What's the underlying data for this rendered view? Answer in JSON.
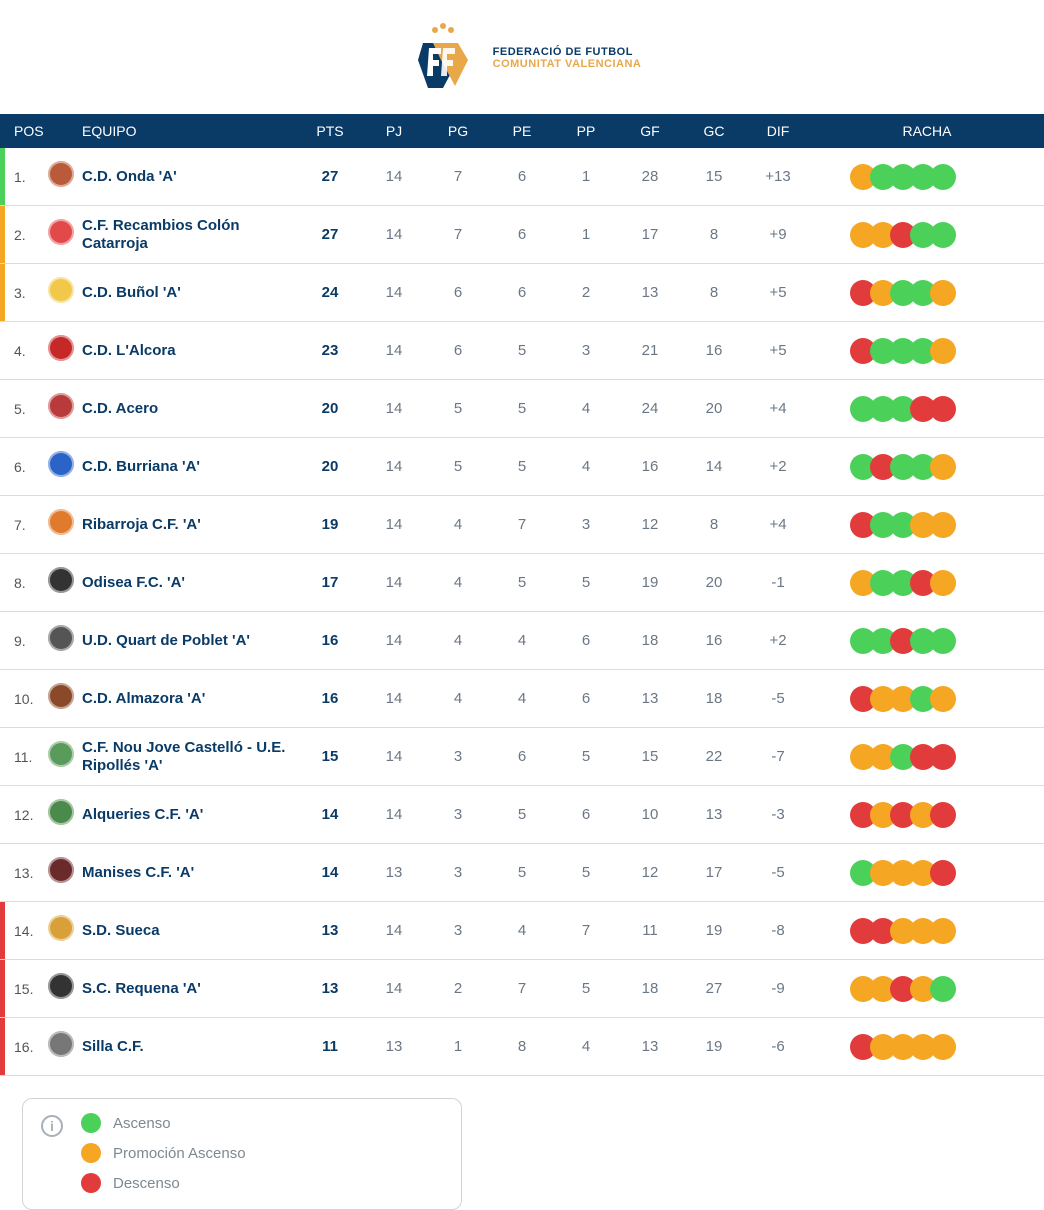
{
  "logo": {
    "line1": "FEDERACIÓ DE FUTBOL",
    "line2": "COMUNITAT VALENCIANA"
  },
  "colors": {
    "header_bg": "#0a3a66",
    "win": "#4bd15a",
    "draw": "#f5a623",
    "loss": "#e23b3b",
    "ascenso_stripe": "#4bd15a",
    "promocion_stripe": "#f5a623",
    "descenso_stripe": "#e23b3b"
  },
  "columns": {
    "pos": "POS",
    "equipo": "EQUIPO",
    "pts": "PTS",
    "pj": "PJ",
    "pg": "PG",
    "pe": "PE",
    "pp": "PP",
    "gf": "GF",
    "gc": "GC",
    "dif": "DIF",
    "racha": "RACHA"
  },
  "rows": [
    {
      "pos": "1.",
      "team": "C.D. Onda 'A'",
      "pts": "27",
      "pj": "14",
      "pg": "7",
      "pe": "6",
      "pp": "1",
      "gf": "28",
      "gc": "15",
      "dif": "+13",
      "stripe": "ascenso",
      "streak": [
        "D",
        "W",
        "W",
        "W",
        "W"
      ],
      "crest": "#b95b3a"
    },
    {
      "pos": "2.",
      "team": "C.F. Recambios Colón Catarroja",
      "pts": "27",
      "pj": "14",
      "pg": "7",
      "pe": "6",
      "pp": "1",
      "gf": "17",
      "gc": "8",
      "dif": "+9",
      "stripe": "promocion",
      "streak": [
        "D",
        "D",
        "L",
        "W",
        "W"
      ],
      "crest": "#e24a4a"
    },
    {
      "pos": "3.",
      "team": "C.D. Buñol 'A'",
      "pts": "24",
      "pj": "14",
      "pg": "6",
      "pe": "6",
      "pp": "2",
      "gf": "13",
      "gc": "8",
      "dif": "+5",
      "stripe": "promocion",
      "streak": [
        "L",
        "D",
        "W",
        "W",
        "D"
      ],
      "crest": "#f2c84b"
    },
    {
      "pos": "4.",
      "team": "C.D. L'Alcora",
      "pts": "23",
      "pj": "14",
      "pg": "6",
      "pe": "5",
      "pp": "3",
      "gf": "21",
      "gc": "16",
      "dif": "+5",
      "stripe": "",
      "streak": [
        "L",
        "W",
        "W",
        "W",
        "D"
      ],
      "crest": "#c62828"
    },
    {
      "pos": "5.",
      "team": "C.D. Acero",
      "pts": "20",
      "pj": "14",
      "pg": "5",
      "pe": "5",
      "pp": "4",
      "gf": "24",
      "gc": "20",
      "dif": "+4",
      "stripe": "",
      "streak": [
        "W",
        "W",
        "W",
        "L",
        "L"
      ],
      "crest": "#b93a3a"
    },
    {
      "pos": "6.",
      "team": "C.D. Burriana 'A'",
      "pts": "20",
      "pj": "14",
      "pg": "5",
      "pe": "5",
      "pp": "4",
      "gf": "16",
      "gc": "14",
      "dif": "+2",
      "stripe": "",
      "streak": [
        "W",
        "L",
        "W",
        "W",
        "D"
      ],
      "crest": "#2a64c7"
    },
    {
      "pos": "7.",
      "team": "Ribarroja C.F. 'A'",
      "pts": "19",
      "pj": "14",
      "pg": "4",
      "pe": "7",
      "pp": "3",
      "gf": "12",
      "gc": "8",
      "dif": "+4",
      "stripe": "",
      "streak": [
        "L",
        "W",
        "W",
        "D",
        "D"
      ],
      "crest": "#e07a2c"
    },
    {
      "pos": "8.",
      "team": "Odisea F.C. 'A'",
      "pts": "17",
      "pj": "14",
      "pg": "4",
      "pe": "5",
      "pp": "5",
      "gf": "19",
      "gc": "20",
      "dif": "-1",
      "stripe": "",
      "streak": [
        "D",
        "W",
        "W",
        "L",
        "D"
      ],
      "crest": "#333333"
    },
    {
      "pos": "9.",
      "team": "U.D. Quart de Poblet 'A'",
      "pts": "16",
      "pj": "14",
      "pg": "4",
      "pe": "4",
      "pp": "6",
      "gf": "18",
      "gc": "16",
      "dif": "+2",
      "stripe": "",
      "streak": [
        "W",
        "W",
        "L",
        "W",
        "W"
      ],
      "crest": "#555555"
    },
    {
      "pos": "10.",
      "team": "C.D. Almazora 'A'",
      "pts": "16",
      "pj": "14",
      "pg": "4",
      "pe": "4",
      "pp": "6",
      "gf": "13",
      "gc": "18",
      "dif": "-5",
      "stripe": "",
      "streak": [
        "L",
        "D",
        "D",
        "W",
        "D"
      ],
      "crest": "#8a4a2a"
    },
    {
      "pos": "11.",
      "team": "C.F. Nou Jove Castelló - U.E. Ripollés 'A'",
      "pts": "15",
      "pj": "14",
      "pg": "3",
      "pe": "6",
      "pp": "5",
      "gf": "15",
      "gc": "22",
      "dif": "-7",
      "stripe": "",
      "streak": [
        "D",
        "D",
        "W",
        "L",
        "L"
      ],
      "crest": "#5a9a5a"
    },
    {
      "pos": "12.",
      "team": "Alqueries C.F. 'A'",
      "pts": "14",
      "pj": "14",
      "pg": "3",
      "pe": "5",
      "pp": "6",
      "gf": "10",
      "gc": "13",
      "dif": "-3",
      "stripe": "",
      "streak": [
        "L",
        "D",
        "L",
        "D",
        "L"
      ],
      "crest": "#4a8a4a"
    },
    {
      "pos": "13.",
      "team": "Manises C.F. 'A'",
      "pts": "14",
      "pj": "13",
      "pg": "3",
      "pe": "5",
      "pp": "5",
      "gf": "12",
      "gc": "17",
      "dif": "-5",
      "stripe": "",
      "streak": [
        "W",
        "D",
        "D",
        "D",
        "L"
      ],
      "crest": "#6a2a2a"
    },
    {
      "pos": "14.",
      "team": "S.D. Sueca",
      "pts": "13",
      "pj": "14",
      "pg": "3",
      "pe": "4",
      "pp": "7",
      "gf": "11",
      "gc": "19",
      "dif": "-8",
      "stripe": "descenso",
      "streak": [
        "L",
        "L",
        "D",
        "D",
        "D"
      ],
      "crest": "#d9a03a"
    },
    {
      "pos": "15.",
      "team": "S.C. Requena 'A'",
      "pts": "13",
      "pj": "14",
      "pg": "2",
      "pe": "7",
      "pp": "5",
      "gf": "18",
      "gc": "27",
      "dif": "-9",
      "stripe": "descenso",
      "streak": [
        "D",
        "D",
        "L",
        "D",
        "W"
      ],
      "crest": "#333333"
    },
    {
      "pos": "16.",
      "team": "Silla C.F.",
      "pts": "11",
      "pj": "13",
      "pg": "1",
      "pe": "8",
      "pp": "4",
      "gf": "13",
      "gc": "19",
      "dif": "-6",
      "stripe": "descenso",
      "streak": [
        "L",
        "D",
        "D",
        "D",
        "D"
      ],
      "crest": "#777777"
    }
  ],
  "legend": {
    "ascenso": "Ascenso",
    "promocion": "Promoción Ascenso",
    "descenso": "Descenso"
  }
}
